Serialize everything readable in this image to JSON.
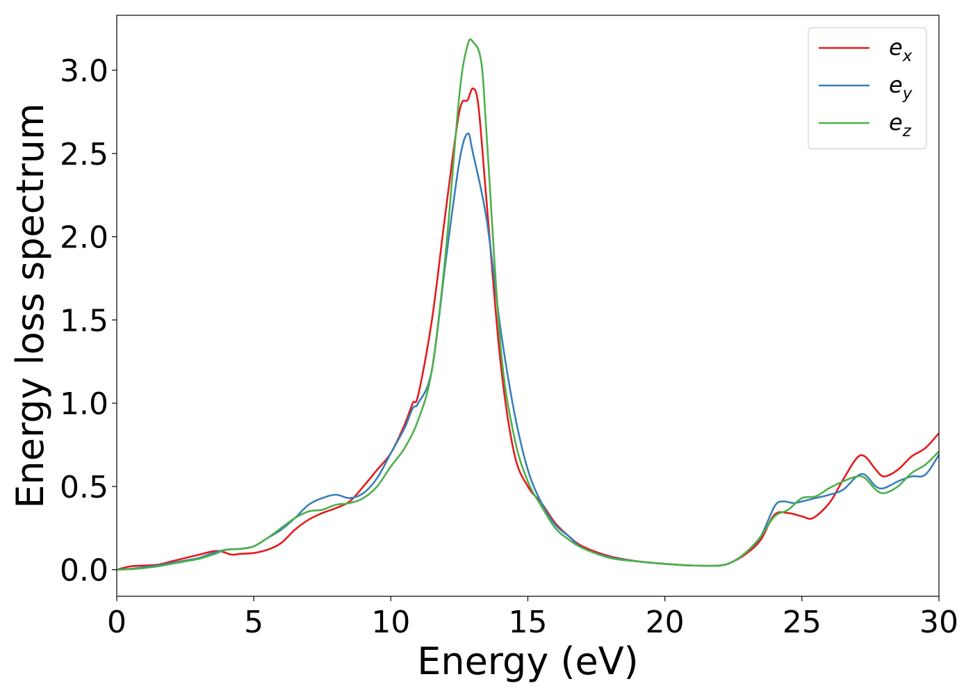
{
  "chart_data": {
    "type": "line",
    "xlabel": "Energy (eV)",
    "ylabel": "Energy loss spectrum",
    "xlim": [
      0,
      30
    ],
    "ylim": [
      -0.16,
      3.33
    ],
    "xticks": [
      0,
      5,
      10,
      15,
      20,
      25,
      30
    ],
    "yticks": [
      0.0,
      0.5,
      1.0,
      1.5,
      2.0,
      2.5,
      3.0
    ],
    "xtick_labels": [
      "0",
      "5",
      "10",
      "15",
      "20",
      "25",
      "30"
    ],
    "ytick_labels": [
      "0.0",
      "0.5",
      "1.0",
      "1.5",
      "2.0",
      "2.5",
      "3.0"
    ],
    "grid": false,
    "legend_position": "top-right",
    "series": [
      {
        "name": "e_x",
        "label_base": "e",
        "label_sub": "x",
        "color": "#e41a1c",
        "points": [
          [
            0,
            0
          ],
          [
            0.5,
            0.02
          ],
          [
            1,
            0.025
          ],
          [
            1.5,
            0.03
          ],
          [
            2,
            0.05
          ],
          [
            2.5,
            0.07
          ],
          [
            3,
            0.09
          ],
          [
            3.5,
            0.11
          ],
          [
            3.8,
            0.11
          ],
          [
            4.2,
            0.09
          ],
          [
            4.5,
            0.095
          ],
          [
            5,
            0.1
          ],
          [
            5.5,
            0.12
          ],
          [
            6,
            0.16
          ],
          [
            6.5,
            0.24
          ],
          [
            7,
            0.3
          ],
          [
            7.5,
            0.34
          ],
          [
            8,
            0.37
          ],
          [
            8.5,
            0.41
          ],
          [
            9,
            0.5
          ],
          [
            9.5,
            0.6
          ],
          [
            10,
            0.7
          ],
          [
            10.5,
            0.87
          ],
          [
            10.8,
            1.0
          ],
          [
            11,
            1.05
          ],
          [
            11.5,
            1.5
          ],
          [
            12,
            2.15
          ],
          [
            12.5,
            2.75
          ],
          [
            12.8,
            2.82
          ],
          [
            13,
            2.89
          ],
          [
            13.2,
            2.78
          ],
          [
            13.5,
            2.2
          ],
          [
            14,
            1.25
          ],
          [
            14.5,
            0.7
          ],
          [
            15,
            0.5
          ],
          [
            15.5,
            0.4
          ],
          [
            16,
            0.28
          ],
          [
            16.5,
            0.2
          ],
          [
            17,
            0.14
          ],
          [
            18,
            0.08
          ],
          [
            19,
            0.05
          ],
          [
            20,
            0.035
          ],
          [
            21,
            0.025
          ],
          [
            22,
            0.025
          ],
          [
            22.5,
            0.05
          ],
          [
            23,
            0.1
          ],
          [
            23.5,
            0.18
          ],
          [
            24,
            0.33
          ],
          [
            24.5,
            0.34
          ],
          [
            25,
            0.32
          ],
          [
            25.4,
            0.31
          ],
          [
            26,
            0.4
          ],
          [
            26.5,
            0.54
          ],
          [
            27,
            0.67
          ],
          [
            27.3,
            0.68
          ],
          [
            27.7,
            0.6
          ],
          [
            28,
            0.56
          ],
          [
            28.5,
            0.6
          ],
          [
            29,
            0.68
          ],
          [
            29.5,
            0.73
          ],
          [
            30,
            0.82
          ]
        ]
      },
      {
        "name": "e_y",
        "label_base": "e",
        "label_sub": "y",
        "color": "#377eb8",
        "points": [
          [
            0,
            0
          ],
          [
            0.5,
            0.005
          ],
          [
            1,
            0.015
          ],
          [
            1.5,
            0.025
          ],
          [
            2,
            0.04
          ],
          [
            2.5,
            0.055
          ],
          [
            3,
            0.07
          ],
          [
            3.5,
            0.1
          ],
          [
            4,
            0.12
          ],
          [
            4.5,
            0.125
          ],
          [
            5,
            0.14
          ],
          [
            5.5,
            0.19
          ],
          [
            6,
            0.24
          ],
          [
            6.5,
            0.31
          ],
          [
            7,
            0.39
          ],
          [
            7.5,
            0.43
          ],
          [
            8,
            0.45
          ],
          [
            8.5,
            0.43
          ],
          [
            9,
            0.46
          ],
          [
            9.5,
            0.55
          ],
          [
            10,
            0.7
          ],
          [
            10.5,
            0.85
          ],
          [
            10.8,
            0.97
          ],
          [
            11,
            1.0
          ],
          [
            11.5,
            1.2
          ],
          [
            12,
            1.85
          ],
          [
            12.5,
            2.45
          ],
          [
            12.8,
            2.62
          ],
          [
            13,
            2.5
          ],
          [
            13.5,
            2.1
          ],
          [
            14,
            1.45
          ],
          [
            14.5,
            0.95
          ],
          [
            15,
            0.6
          ],
          [
            15.5,
            0.4
          ],
          [
            16,
            0.27
          ],
          [
            16.5,
            0.2
          ],
          [
            17,
            0.13
          ],
          [
            18,
            0.075
          ],
          [
            19,
            0.05
          ],
          [
            20,
            0.035
          ],
          [
            21,
            0.025
          ],
          [
            22,
            0.025
          ],
          [
            22.5,
            0.05
          ],
          [
            23,
            0.11
          ],
          [
            23.5,
            0.2
          ],
          [
            24,
            0.38
          ],
          [
            24.3,
            0.41
          ],
          [
            24.7,
            0.4
          ],
          [
            25,
            0.41
          ],
          [
            25.5,
            0.43
          ],
          [
            26,
            0.45
          ],
          [
            26.5,
            0.48
          ],
          [
            27,
            0.56
          ],
          [
            27.3,
            0.57
          ],
          [
            27.7,
            0.5
          ],
          [
            28,
            0.49
          ],
          [
            28.5,
            0.53
          ],
          [
            29,
            0.56
          ],
          [
            29.5,
            0.57
          ],
          [
            30,
            0.69
          ]
        ]
      },
      {
        "name": "e_z",
        "label_base": "e",
        "label_sub": "z",
        "color": "#4daf4a",
        "points": [
          [
            0,
            0
          ],
          [
            0.5,
            0.003
          ],
          [
            1,
            0.01
          ],
          [
            1.5,
            0.02
          ],
          [
            2,
            0.035
          ],
          [
            2.5,
            0.05
          ],
          [
            3,
            0.065
          ],
          [
            3.5,
            0.09
          ],
          [
            4,
            0.12
          ],
          [
            4.5,
            0.125
          ],
          [
            5,
            0.14
          ],
          [
            5.5,
            0.19
          ],
          [
            6,
            0.25
          ],
          [
            6.5,
            0.31
          ],
          [
            7,
            0.35
          ],
          [
            7.5,
            0.36
          ],
          [
            8,
            0.39
          ],
          [
            8.5,
            0.4
          ],
          [
            9,
            0.43
          ],
          [
            9.5,
            0.5
          ],
          [
            10,
            0.62
          ],
          [
            10.5,
            0.73
          ],
          [
            11,
            0.9
          ],
          [
            11.5,
            1.2
          ],
          [
            12,
            1.9
          ],
          [
            12.5,
            2.85
          ],
          [
            12.8,
            3.15
          ],
          [
            13,
            3.17
          ],
          [
            13.3,
            3.05
          ],
          [
            13.5,
            2.6
          ],
          [
            14,
            1.35
          ],
          [
            14.5,
            0.8
          ],
          [
            15,
            0.53
          ],
          [
            15.5,
            0.38
          ],
          [
            16,
            0.25
          ],
          [
            16.5,
            0.18
          ],
          [
            17,
            0.13
          ],
          [
            18,
            0.07
          ],
          [
            19,
            0.05
          ],
          [
            20,
            0.035
          ],
          [
            21,
            0.025
          ],
          [
            22,
            0.025
          ],
          [
            22.5,
            0.05
          ],
          [
            23,
            0.11
          ],
          [
            23.5,
            0.2
          ],
          [
            24,
            0.32
          ],
          [
            24.5,
            0.36
          ],
          [
            25,
            0.43
          ],
          [
            25.5,
            0.44
          ],
          [
            26,
            0.49
          ],
          [
            26.5,
            0.53
          ],
          [
            27,
            0.56
          ],
          [
            27.3,
            0.55
          ],
          [
            27.7,
            0.48
          ],
          [
            28,
            0.46
          ],
          [
            28.5,
            0.5
          ],
          [
            29,
            0.58
          ],
          [
            29.5,
            0.63
          ],
          [
            30,
            0.71
          ]
        ]
      }
    ]
  }
}
